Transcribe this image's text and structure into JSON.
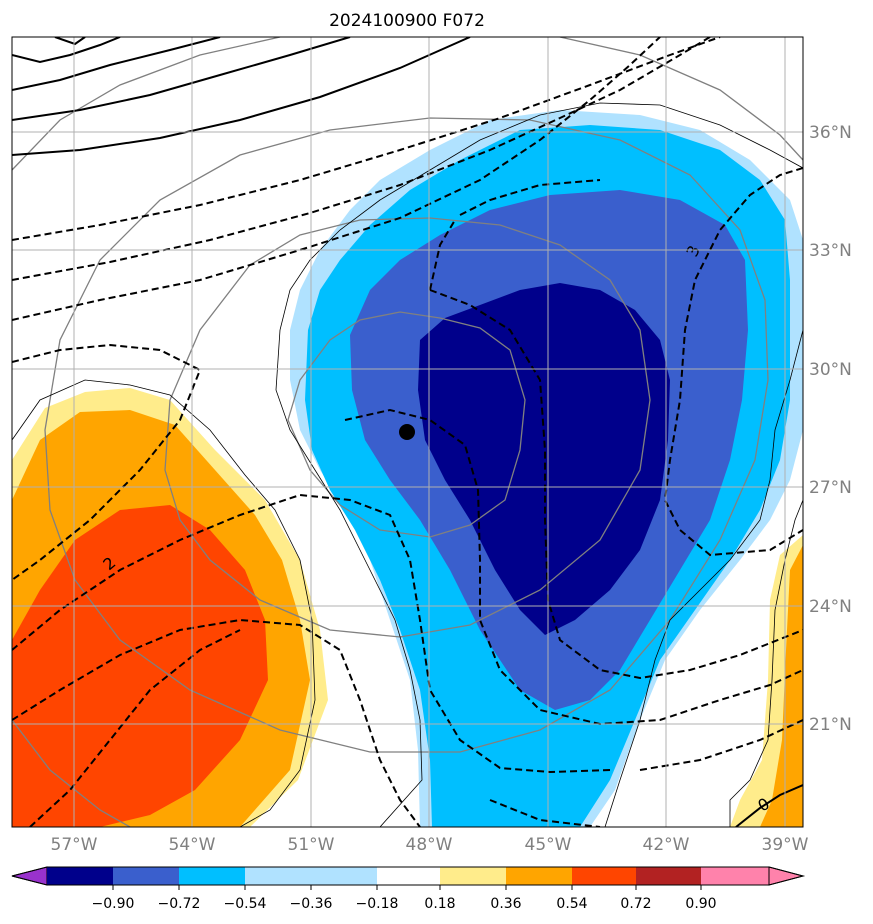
{
  "title": "2024100900 F072",
  "map": {
    "lon_ticks": [
      "57°W",
      "54°W",
      "51°W",
      "48°W",
      "45°W",
      "42°W",
      "39°W"
    ],
    "lat_ticks": [
      "36°N",
      "33°N",
      "30°N",
      "27°N",
      "24°N",
      "21°N"
    ],
    "gridlines": true,
    "extent": {
      "lon": [
        -58.5,
        -38.5
      ],
      "lat": [
        18.5,
        38.5
      ]
    },
    "center_marker": {
      "lon": -48.8,
      "lat": 28.4
    },
    "contour_labels": [
      "2",
      "3",
      "0"
    ]
  },
  "colorbar": {
    "levels": [
      "−0.90",
      "−0.72",
      "−0.54",
      "−0.36",
      "−0.18",
      "0.18",
      "0.36",
      "0.54",
      "0.72",
      "0.90"
    ],
    "colors": [
      "#9932cc",
      "#00008b",
      "#3a5fcd",
      "#00bfff",
      "#b0e2ff",
      "#ffffff",
      "#ffec8b",
      "#ffa500",
      "#ff4500",
      "#b22222",
      "#ff82ab"
    ],
    "extend": "both"
  }
}
